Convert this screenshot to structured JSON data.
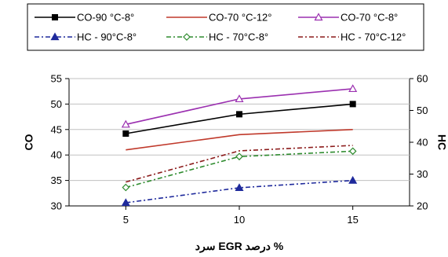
{
  "chart_data": {
    "type": "line",
    "x": [
      5,
      10,
      15
    ],
    "xlim": [
      2.5,
      17.5
    ],
    "xticks": [
      5,
      10,
      15
    ],
    "xlabel": "% درصد EGR سرد",
    "ylabel_left": "CO",
    "ylabel_right": "HC",
    "ylim_left": [
      30,
      55
    ],
    "yticks_left": [
      30,
      35,
      40,
      45,
      50,
      55
    ],
    "ylim_right": [
      20,
      60
    ],
    "yticks_right": [
      20,
      30,
      40,
      50,
      60
    ],
    "legend_position": "top",
    "series": [
      {
        "name": "CO-90 °C-8°",
        "axis": "left",
        "values": [
          44.2,
          48.0,
          50.0
        ],
        "color": "#000000",
        "dash": "",
        "marker": "square",
        "marker_fill": "#000000"
      },
      {
        "name": "CO-70 °C-12°",
        "axis": "left",
        "values": [
          41.0,
          44.0,
          45.0
        ],
        "color": "#c0392b",
        "dash": "",
        "marker": "none",
        "marker_fill": "none"
      },
      {
        "name": "CO-70 °C-8°",
        "axis": "left",
        "values": [
          46.0,
          51.0,
          53.0
        ],
        "color": "#9b30b0",
        "dash": "",
        "marker": "triangle",
        "marker_fill": "#ffffff"
      },
      {
        "name": "HC - 90°C-8°",
        "axis": "right",
        "values": [
          21.0,
          25.7,
          28.0
        ],
        "color": "#1f2a9c",
        "dash": "6,3,2,3",
        "marker": "triangle",
        "marker_fill": "#1f2a9c"
      },
      {
        "name": "HC - 70°C-8°",
        "axis": "right",
        "values": [
          25.8,
          35.5,
          37.2
        ],
        "color": "#2e8b2e",
        "dash": "6,3,2,3",
        "marker": "diamond",
        "marker_fill": "#ffffff"
      },
      {
        "name": "HC - 70°C-12°",
        "axis": "right",
        "values": [
          27.5,
          37.3,
          39.0
        ],
        "color": "#8b1a1a",
        "dash": "6,3,2,3",
        "marker": "none",
        "marker_fill": "none"
      }
    ]
  }
}
